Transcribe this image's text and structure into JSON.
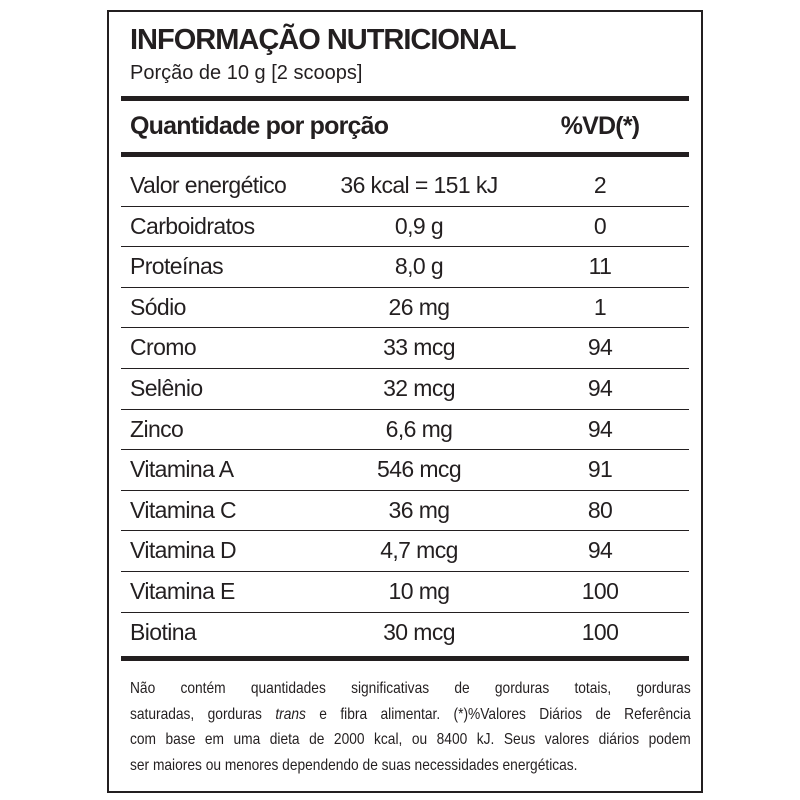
{
  "header": {
    "title": "INFORMAÇÃO NUTRICIONAL",
    "serving": "Porção de 10 g  [2 scoops]"
  },
  "table": {
    "columns": [
      "Quantidade por porção",
      "%VD(*)"
    ],
    "rows": [
      [
        "Valor energético",
        "36 kcal = 151 kJ",
        "2"
      ],
      [
        "Carboidratos",
        "0,9 g",
        "0"
      ],
      [
        "Proteínas",
        "8,0 g",
        "11"
      ],
      [
        "Sódio",
        "26 mg",
        "1"
      ],
      [
        "Cromo",
        "33 mcg",
        "94"
      ],
      [
        "Selênio",
        "32 mcg",
        "94"
      ],
      [
        "Zinco",
        "6,6 mg",
        "94"
      ],
      [
        "Vitamina A",
        "546 mcg",
        "91"
      ],
      [
        "Vitamina C",
        "36 mg",
        "80"
      ],
      [
        "Vitamina D",
        "4,7 mcg",
        "94"
      ],
      [
        "Vitamina E",
        "10 mg",
        "100"
      ],
      [
        "Biotina",
        "30 mcg",
        "100"
      ]
    ]
  },
  "footnote": {
    "lines": [
      [
        "Não contém quantidades significativas de gorduras totais, gorduras"
      ],
      [
        "saturadas, gorduras ",
        "trans",
        " e fibra alimentar. (*)%Valores Diários de Referência"
      ],
      [
        "com base em uma dieta de 2000 kcal, ou 8400 kJ. Seus valores diários podem"
      ],
      [
        "ser maiores ou menores dependendo de suas necessidades energéticas."
      ]
    ]
  }
}
